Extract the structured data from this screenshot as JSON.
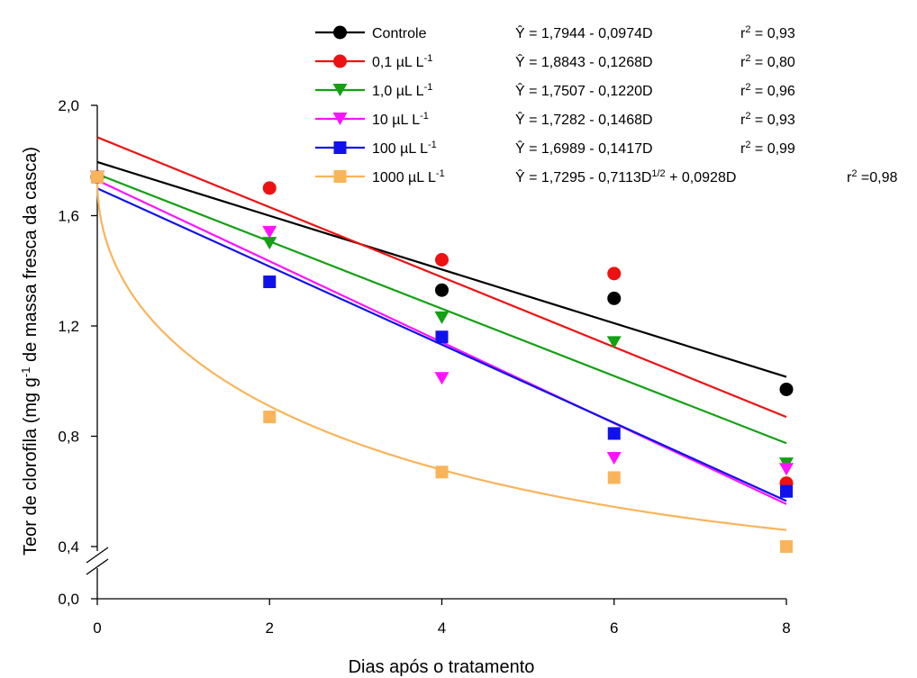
{
  "chart_data": {
    "type": "scatter",
    "xlabel": "Dias após o tratamento",
    "ylabel_pre": "Teor de clorofila (mg g",
    "ylabel_sup": "-1",
    "ylabel_post": " de massa fresca da casca)",
    "x": [
      0,
      2,
      4,
      6,
      8
    ],
    "xticks": [
      "0",
      "2",
      "4",
      "6",
      "8"
    ],
    "yticks": [
      {
        "value": 0.0,
        "label": "0,0"
      },
      {
        "value": 0.4,
        "label": "0,4"
      },
      {
        "value": 0.8,
        "label": "0,8"
      },
      {
        "value": 1.2,
        "label": "1,2"
      },
      {
        "value": 1.6,
        "label": "1,6"
      },
      {
        "value": 2.0,
        "label": "2,0"
      }
    ],
    "xlim": [
      0,
      8
    ],
    "ylim": [
      0,
      2.0
    ],
    "axis_break": [
      0.0,
      0.4
    ],
    "grid": false,
    "legend_position": "top",
    "series": [
      {
        "name": "Controle",
        "unit": "",
        "unit_sup": "",
        "color": "#000000",
        "marker": "circle",
        "values": [
          1.74,
          null,
          1.33,
          1.3,
          0.97
        ],
        "fit": {
          "type": "linear",
          "a": 1.7944,
          "b": -0.0974
        },
        "equation": "Ŷ = 1,7944 - 0,0974D",
        "eq_sup": "",
        "eq_tail": "",
        "r2_label": "r",
        "r2_sup": "2",
        "r2_value": " = 0,93"
      },
      {
        "name": "0,1 µL L",
        "unit": "",
        "unit_sup": "-1",
        "color": "#ee1111",
        "marker": "circle",
        "values": [
          1.74,
          1.7,
          1.44,
          1.39,
          0.63
        ],
        "fit": {
          "type": "linear",
          "a": 1.8843,
          "b": -0.1268
        },
        "equation": "Ŷ = 1,8843 - 0,1268D",
        "eq_sup": "",
        "eq_tail": "",
        "r2_label": "r",
        "r2_sup": "2",
        "r2_value": " = 0,80"
      },
      {
        "name": "1,0 µL L",
        "unit": "",
        "unit_sup": "-1",
        "color": "#13a013",
        "marker": "triangle-down",
        "values": [
          1.74,
          1.5,
          1.23,
          1.14,
          0.7
        ],
        "fit": {
          "type": "linear",
          "a": 1.7507,
          "b": -0.122
        },
        "equation": "Ŷ = 1,7507 - 0,1220D",
        "eq_sup": "",
        "eq_tail": "",
        "r2_label": "r",
        "r2_sup": "2",
        "r2_value": " = 0,96"
      },
      {
        "name": "10 µL L",
        "unit": "",
        "unit_sup": "-1",
        "color": "#ff11ff",
        "marker": "triangle-down",
        "values": [
          1.74,
          1.54,
          1.01,
          0.72,
          0.68
        ],
        "fit": {
          "type": "linear",
          "a": 1.7282,
          "b": -0.1468
        },
        "equation": "Ŷ = 1,7282 - 0,1468D",
        "eq_sup": "",
        "eq_tail": "",
        "r2_label": "r",
        "r2_sup": "2",
        "r2_value": " = 0,93"
      },
      {
        "name": "100 µL L",
        "unit": "",
        "unit_sup": "-1",
        "color": "#1111ee",
        "marker": "square",
        "values": [
          1.74,
          1.36,
          1.16,
          0.81,
          0.6
        ],
        "fit": {
          "type": "linear",
          "a": 1.6989,
          "b": -0.1417
        },
        "equation": "Ŷ = 1,6989 - 0,1417D",
        "eq_sup": "",
        "eq_tail": "",
        "r2_label": "r",
        "r2_sup": "2",
        "r2_value": " = 0,99"
      },
      {
        "name": "1000 µL L",
        "unit": "",
        "unit_sup": "-1",
        "color": "#f9b45a",
        "marker": "square",
        "values": [
          1.74,
          0.87,
          0.67,
          0.65,
          0.4
        ],
        "fit": {
          "type": "sqrt",
          "a": 1.7295,
          "b": -0.7113,
          "c": 0.0928
        },
        "equation": "Ŷ = 1,7295 - 0,7113D",
        "eq_sup": "1/2",
        "eq_tail": " + 0,0928D",
        "r2_label": "r",
        "r2_sup": "2",
        "r2_value": " =0,98"
      }
    ]
  }
}
